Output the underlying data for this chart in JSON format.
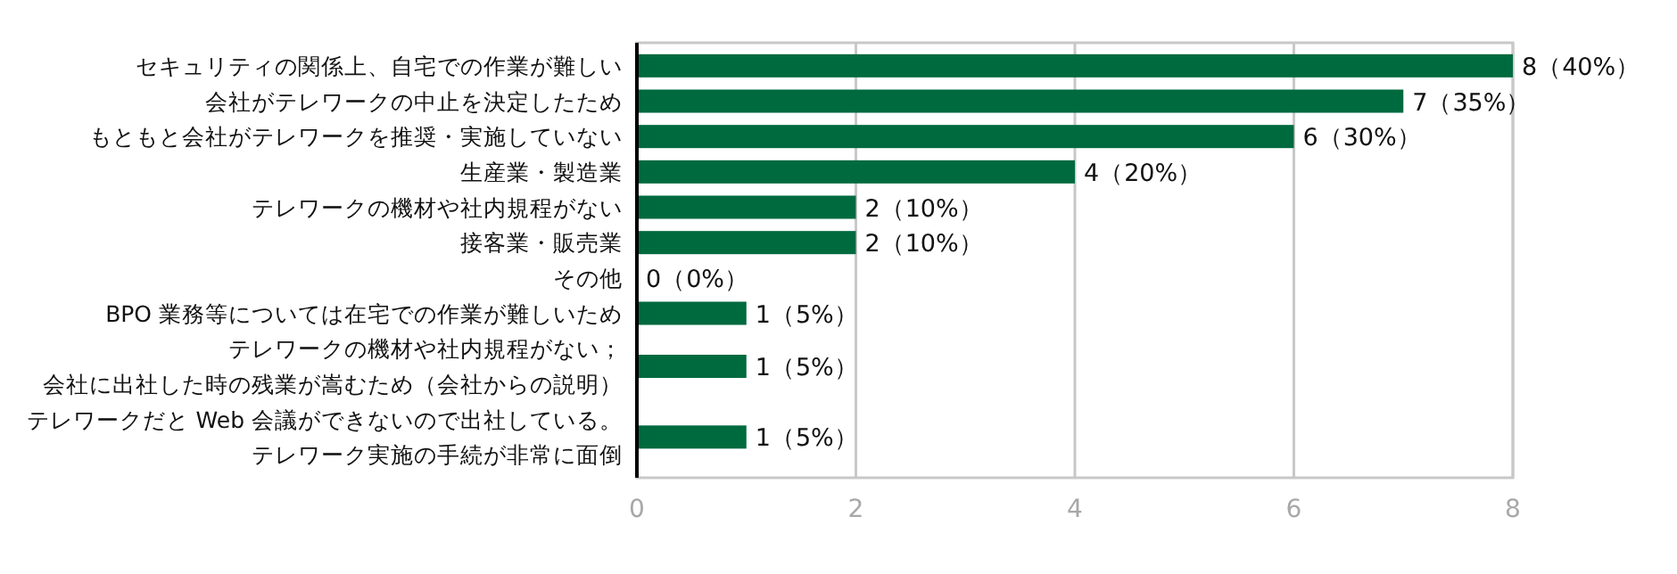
{
  "chart_data": {
    "type": "bar",
    "orientation": "horizontal",
    "categories": [
      "セキュリティの関係上、自宅での作業が難しい",
      "会社がテレワークの中止を決定したため",
      "もともと会社がテレワークを推奨・実施していない",
      "生産業・製造業",
      "テレワークの機材や社内規程がない",
      "接客業・販売業",
      "その他",
      "BPO 業務等については在宅での作業が難しいため",
      "テレワークの機材や社内規程がない；会社に出社した時の残業が嵩むため（会社からの説明）",
      "テレワークだと Web 会議ができないので出社している。テレワーク実施の手続が非常に面倒"
    ],
    "values": [
      8,
      7,
      6,
      4,
      2,
      2,
      0,
      1,
      1,
      1
    ],
    "value_labels": [
      "8（40%）",
      "7（35%）",
      "6（30%）",
      "4（20%）",
      "2（10%）",
      "2（10%）",
      "0（0%）",
      "1（5%）",
      "1（5%）",
      "1（5%）"
    ],
    "color": "#006a3f",
    "xlim": [
      0,
      8
    ],
    "xticks": [
      0,
      2,
      4,
      6,
      8
    ],
    "grid": "x"
  }
}
